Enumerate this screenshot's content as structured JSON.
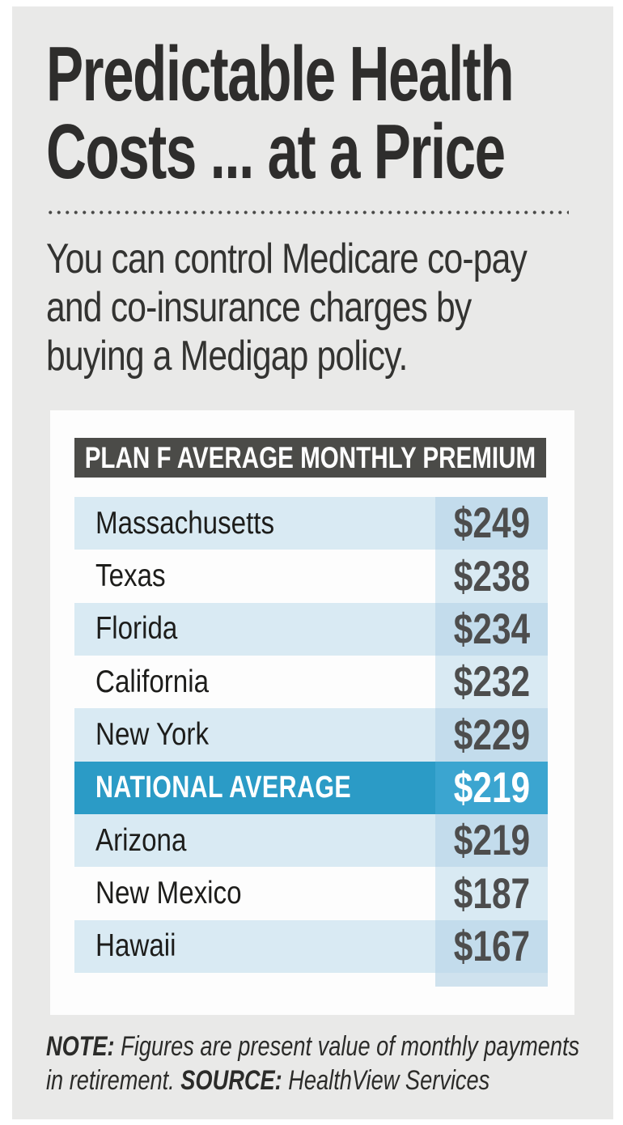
{
  "header": {
    "title_line1": "Predictable Health",
    "title_line2": "Costs ... at a Price",
    "subtitle_line1": "You can control Medicare co-pay",
    "subtitle_line2": "and co-insurance charges by",
    "subtitle_line3": "buying a Medigap policy."
  },
  "table": {
    "header": "PLAN F AVERAGE MONTHLY PREMIUM",
    "rows": [
      {
        "label": "Massachusetts",
        "value": "$249",
        "tint": true,
        "highlight": false
      },
      {
        "label": "Texas",
        "value": "$238",
        "tint": false,
        "highlight": false
      },
      {
        "label": "Florida",
        "value": "$234",
        "tint": true,
        "highlight": false
      },
      {
        "label": "California",
        "value": "$232",
        "tint": false,
        "highlight": false
      },
      {
        "label": "New York",
        "value": "$229",
        "tint": true,
        "highlight": false
      },
      {
        "label": "NATIONAL AVERAGE",
        "value": "$219",
        "tint": false,
        "highlight": true
      },
      {
        "label": "Arizona",
        "value": "$219",
        "tint": true,
        "highlight": false
      },
      {
        "label": "New Mexico",
        "value": "$187",
        "tint": false,
        "highlight": false
      },
      {
        "label": "Hawaii",
        "value": "$167",
        "tint": true,
        "highlight": false
      }
    ]
  },
  "note": {
    "note_label": "NOTE:",
    "note_text": " Figures are present value of monthly payments",
    "note_text2": "in retirement. ",
    "source_label": "SOURCE:",
    "source_text": " HealthView Services"
  },
  "colors": {
    "panel_bg": "#e9e9e8",
    "card_bg": "#fdfdfd",
    "header_bar": "#4b4b48",
    "row_tint": "#d9eaf3",
    "value_cell_on_tint": "#c3dcec",
    "value_cell_on_plain": "#d9eaf3",
    "highlight_row": "#2b9bc6",
    "highlight_value_cell": "#3ba5d0",
    "value_text": "#4d4d4d",
    "title_text": "#2e2d2c"
  },
  "chart_data": {
    "type": "table",
    "title": "PLAN F AVERAGE MONTHLY PREMIUM",
    "categories": [
      "Massachusetts",
      "Texas",
      "Florida",
      "California",
      "New York",
      "NATIONAL AVERAGE",
      "Arizona",
      "New Mexico",
      "Hawaii"
    ],
    "values": [
      249,
      238,
      234,
      232,
      229,
      219,
      219,
      187,
      167
    ],
    "unit": "USD per month",
    "highlighted_category": "NATIONAL AVERAGE",
    "note": "Figures are present value of monthly payments in retirement.",
    "source": "HealthView Services"
  }
}
